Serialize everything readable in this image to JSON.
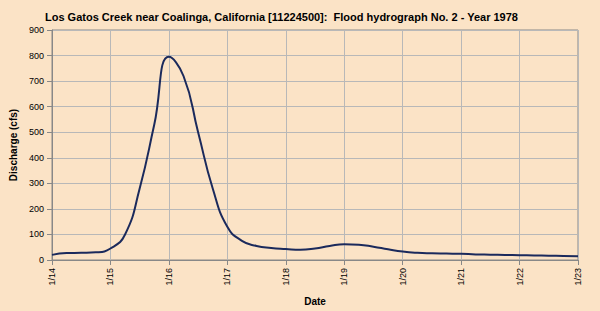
{
  "chart_data": {
    "type": "line",
    "title": "Los Gatos Creek near Coalinga, California [11224500]:  Flood hydrograph No. 2 - Year 1978",
    "x_label": "Date",
    "y_label": "Discharge (cfs)",
    "categories": [
      "1/14",
      null,
      null,
      null,
      "1/15",
      null,
      null,
      null,
      "1/16",
      null,
      null,
      null,
      "1/17",
      null,
      null,
      null,
      "1/18",
      null,
      null,
      null,
      "1/19",
      null,
      null,
      null,
      "1/20",
      null,
      null,
      null,
      "1/21",
      null,
      null,
      null,
      "1/22",
      null,
      null,
      null,
      "1/23"
    ],
    "values": [
      20,
      27,
      28,
      30,
      45,
      100,
      280,
      530,
      795,
      720,
      500,
      280,
      130,
      75,
      55,
      47,
      43,
      40,
      45,
      55,
      62,
      60,
      52,
      42,
      33,
      28,
      26,
      25,
      24,
      22,
      21,
      20,
      19,
      18,
      17,
      16,
      15
    ],
    "color": "#1b2a5c",
    "ylim": [
      0,
      900
    ],
    "yticks": [
      0,
      100,
      200,
      300,
      400,
      500,
      600,
      700,
      800,
      900
    ],
    "grid": true,
    "marker": "none",
    "line_style": "solid"
  }
}
